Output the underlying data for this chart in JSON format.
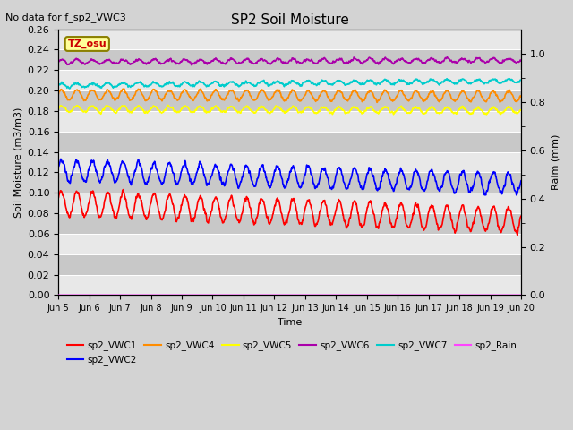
{
  "title": "SP2 Soil Moisture",
  "subtitle": "No data for f_sp2_VWC3",
  "xlabel": "Time",
  "ylabel_left": "Soil Moisture (m3/m3)",
  "ylabel_right": "Raim (mm)",
  "background_color": "#d3d3d3",
  "plot_bg_light": "#e8e8e8",
  "plot_bg_dark": "#c8c8c8",
  "xlim_days": [
    0,
    15
  ],
  "ylim_left": [
    0.0,
    0.26
  ],
  "ylim_right": [
    0.0,
    1.1
  ],
  "x_tick_labels": [
    "Jun 5",
    "Jun 6",
    "Jun 7",
    "Jun 8",
    "Jun 9",
    "Jun 10",
    "Jun 11",
    "Jun 12",
    "Jun 13",
    "Jun 14",
    "Jun 15",
    "Jun 16",
    "Jun 17",
    "Jun 18",
    "Jun 19",
    "Jun 20"
  ],
  "num_points": 1500,
  "series": {
    "sp2_VWC1": {
      "color": "#ff0000",
      "base": 0.09,
      "amplitude": 0.012,
      "trend": -0.00115,
      "period": 0.5,
      "phase": 0.3,
      "noise": 0.002,
      "lw": 1.2
    },
    "sp2_VWC2": {
      "color": "#0000ff",
      "base": 0.122,
      "amplitude": 0.01,
      "trend": -0.00085,
      "period": 0.5,
      "phase": 0.3,
      "noise": 0.002,
      "lw": 1.2
    },
    "sp2_VWC4": {
      "color": "#ff8c00",
      "base": 0.196,
      "amplitude": 0.005,
      "trend": -0.0001,
      "period": 0.5,
      "phase": 0.3,
      "noise": 0.001,
      "lw": 1.2
    },
    "sp2_VWC5": {
      "color": "#ffff00",
      "base": 0.182,
      "amplitude": 0.003,
      "trend": -0.0001,
      "period": 0.5,
      "phase": 0.3,
      "noise": 0.001,
      "lw": 1.2
    },
    "sp2_VWC6": {
      "color": "#aa00aa",
      "base": 0.228,
      "amplitude": 0.002,
      "trend": 0.0001,
      "period": 0.5,
      "phase": 0.3,
      "noise": 0.001,
      "lw": 1.2
    },
    "sp2_VWC7": {
      "color": "#00cccc",
      "base": 0.205,
      "amplitude": 0.002,
      "trend": 0.0003,
      "period": 0.5,
      "phase": 0.3,
      "noise": 0.001,
      "lw": 1.2
    },
    "sp2_Rain": {
      "color": "#ff44ff",
      "base": 0.001,
      "amplitude": 0.0,
      "trend": 0.0,
      "period": 1.0,
      "phase": 0.0,
      "noise": 0.0,
      "lw": 1.0
    }
  },
  "annotation_text": "TZ_osu",
  "annotation_bg": "#ffff99",
  "annotation_border": "#8B8000",
  "legend_row1": [
    "sp2_VWC1",
    "sp2_VWC2",
    "sp2_VWC4",
    "sp2_VWC5",
    "sp2_VWC6",
    "sp2_VWC7"
  ],
  "legend_row2": [
    "sp2_Rain"
  ]
}
